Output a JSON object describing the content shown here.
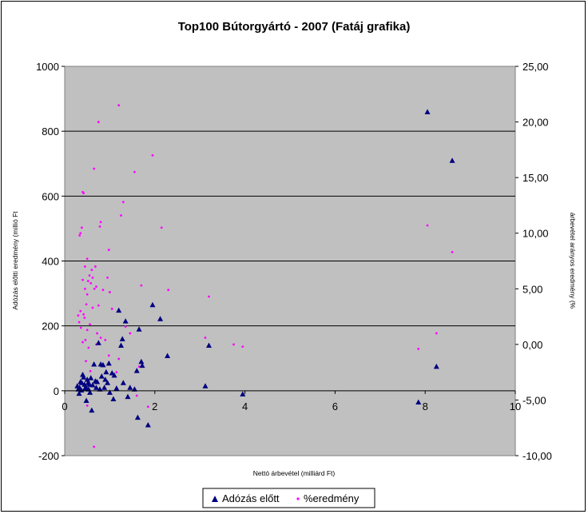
{
  "chart_data": {
    "type": "scatter",
    "title": "Top100 Bútorgyártó - 2007 (Fatáj grafika)",
    "xlabel": "Nettó árbevétel (milliárd Ft)",
    "ylabel": "Adózás előtti eredmény (millió Ft",
    "y2label": "árbevétel arányos eredmény (%",
    "xlim": [
      0,
      10
    ],
    "ylim": [
      -200,
      1000
    ],
    "y2lim": [
      -10,
      25
    ],
    "x_ticks": [
      "0",
      "2",
      "4",
      "6",
      "8",
      "10"
    ],
    "y_ticks": [
      "-200",
      "0",
      "200",
      "400",
      "600",
      "800",
      "1000"
    ],
    "y2_ticks": [
      "-10,00",
      "-5,00",
      "0,00",
      "5,00",
      "10,00",
      "15,00",
      "20,00",
      "25,00"
    ],
    "grid": "horizontal",
    "plot_background": "#c0c0c0",
    "legend": "bottom",
    "series": [
      {
        "name": "Adózás előtt",
        "axis": "left",
        "marker": "triangle",
        "color": "#000080",
        "points": [
          [
            8.05,
            860
          ],
          [
            8.6,
            710
          ],
          [
            8.25,
            75
          ],
          [
            7.85,
            -35
          ],
          [
            1.95,
            265
          ],
          [
            2.12,
            222
          ],
          [
            2.28,
            108
          ],
          [
            1.65,
            190
          ],
          [
            1.7,
            90
          ],
          [
            1.72,
            78
          ],
          [
            1.6,
            62
          ],
          [
            1.62,
            -82
          ],
          [
            1.85,
            -105
          ],
          [
            1.2,
            248
          ],
          [
            1.25,
            140
          ],
          [
            1.28,
            160
          ],
          [
            1.3,
            25
          ],
          [
            1.35,
            215
          ],
          [
            1.4,
            -18
          ],
          [
            1.45,
            10
          ],
          [
            1.55,
            5
          ],
          [
            1.1,
            48
          ],
          [
            3.12,
            15
          ],
          [
            3.2,
            140
          ],
          [
            3.95,
            -10
          ],
          [
            0.75,
            148
          ],
          [
            0.8,
            82
          ],
          [
            0.85,
            80
          ],
          [
            0.92,
            58
          ],
          [
            0.98,
            85
          ],
          [
            1.0,
            -5
          ],
          [
            1.05,
            55
          ],
          [
            0.9,
            35
          ],
          [
            0.88,
            10
          ],
          [
            0.65,
            82
          ],
          [
            0.68,
            30
          ],
          [
            0.7,
            10
          ],
          [
            0.6,
            -60
          ],
          [
            0.55,
            20
          ],
          [
            0.5,
            35
          ],
          [
            0.52,
            25
          ],
          [
            0.58,
            40
          ],
          [
            0.45,
            8
          ],
          [
            0.48,
            -30
          ],
          [
            0.42,
            42
          ],
          [
            0.4,
            50
          ],
          [
            0.38,
            25
          ],
          [
            0.35,
            28
          ],
          [
            0.33,
            10
          ],
          [
            0.3,
            5
          ],
          [
            0.32,
            -8
          ],
          [
            0.37,
            2
          ],
          [
            0.28,
            15
          ],
          [
            0.44,
            20
          ],
          [
            0.47,
            12
          ],
          [
            0.53,
            5
          ],
          [
            0.56,
            -5
          ],
          [
            0.62,
            18
          ],
          [
            0.72,
            28
          ],
          [
            0.78,
            5
          ],
          [
            0.82,
            45
          ],
          [
            0.95,
            25
          ],
          [
            1.08,
            -25
          ],
          [
            1.15,
            8
          ]
        ]
      },
      {
        "name": "%eredmény",
        "axis": "right",
        "marker": "dot",
        "color": "#ff00ff",
        "points": [
          [
            1.2,
            21.5
          ],
          [
            0.75,
            20.0
          ],
          [
            1.95,
            17.0
          ],
          [
            0.65,
            15.8
          ],
          [
            1.55,
            15.5
          ],
          [
            0.4,
            13.7
          ],
          [
            0.42,
            13.6
          ],
          [
            1.3,
            12.8
          ],
          [
            1.25,
            11.6
          ],
          [
            0.8,
            11.0
          ],
          [
            0.78,
            10.6
          ],
          [
            2.15,
            10.5
          ],
          [
            8.05,
            10.7
          ],
          [
            0.35,
            10.0
          ],
          [
            0.38,
            10.5
          ],
          [
            0.33,
            9.8
          ],
          [
            8.6,
            8.3
          ],
          [
            0.98,
            8.5
          ],
          [
            0.5,
            7.7
          ],
          [
            0.45,
            7.0
          ],
          [
            0.6,
            6.7
          ],
          [
            0.55,
            6.2
          ],
          [
            0.95,
            6.0
          ],
          [
            0.4,
            5.8
          ],
          [
            0.52,
            5.7
          ],
          [
            0.58,
            5.5
          ],
          [
            0.66,
            5.0
          ],
          [
            0.7,
            5.2
          ],
          [
            1.7,
            5.3
          ],
          [
            2.3,
            4.9
          ],
          [
            0.85,
            4.9
          ],
          [
            1.0,
            4.7
          ],
          [
            1.05,
            3.2
          ],
          [
            0.48,
            3.6
          ],
          [
            0.62,
            3.3
          ],
          [
            0.35,
            3.0
          ],
          [
            0.42,
            2.7
          ],
          [
            0.44,
            2.4
          ],
          [
            0.3,
            2.6
          ],
          [
            0.32,
            2.0
          ],
          [
            0.36,
            1.5
          ],
          [
            0.5,
            1.3
          ],
          [
            0.56,
            1.8
          ],
          [
            3.2,
            4.3
          ],
          [
            1.35,
            1.6
          ],
          [
            1.45,
            1.0
          ],
          [
            0.72,
            1.0
          ],
          [
            0.8,
            0.6
          ],
          [
            0.9,
            0.4
          ],
          [
            0.4,
            0.2
          ],
          [
            0.46,
            0.4
          ],
          [
            0.53,
            -0.3
          ],
          [
            0.7,
            0.0
          ],
          [
            3.12,
            0.6
          ],
          [
            3.75,
            0.0
          ],
          [
            3.95,
            -0.2
          ],
          [
            8.25,
            1.0
          ],
          [
            7.85,
            -0.4
          ],
          [
            1.15,
            -2.5
          ],
          [
            1.2,
            -1.3
          ],
          [
            0.98,
            -1.0
          ],
          [
            1.65,
            -2.0
          ],
          [
            1.6,
            -4.6
          ],
          [
            1.85,
            -5.6
          ],
          [
            0.5,
            -5.5
          ],
          [
            0.6,
            -6.0
          ],
          [
            0.65,
            -9.2
          ],
          [
            0.47,
            -1.5
          ],
          [
            0.57,
            -2.4
          ],
          [
            0.85,
            -1.8
          ],
          [
            0.75,
            3.5
          ],
          [
            0.62,
            6.0
          ],
          [
            0.68,
            7.0
          ],
          [
            0.5,
            4.5
          ],
          [
            0.45,
            5.0
          ]
        ]
      }
    ]
  }
}
